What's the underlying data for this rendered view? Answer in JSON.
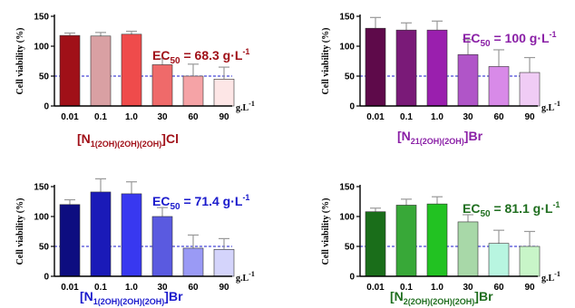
{
  "chart_data": [
    {
      "type": "bar",
      "title": "[N1(2OH)(2OH)(2OH)]Cl",
      "title_parts": [
        "[N",
        "1(2OH)(2OH)(2OH)",
        "]Cl"
      ],
      "annotation": {
        "ec_base": "EC",
        "ec_sub": "50",
        "ec_value": " = 68.3 g·L",
        "ec_sup": "-1"
      },
      "accent": "#a01018",
      "ylabel": "Cell viability (%)",
      "xunit_base": "g.L",
      "xunit_sup": "-1",
      "ylim": [
        0,
        150
      ],
      "yticks": [
        "0",
        "50",
        "100",
        "150"
      ],
      "reference_line": 50,
      "categories": [
        "0.01",
        "0.1",
        "1.0",
        "30",
        "60",
        "90"
      ],
      "values": [
        118,
        117,
        120,
        69,
        50,
        45
      ],
      "errors": [
        4,
        6,
        5,
        10,
        20,
        20
      ],
      "colors": [
        "#a01018",
        "#d9a0a3",
        "#ef4b4b",
        "#ef6a6a",
        "#f5a3a6",
        "#fde6e6"
      ]
    },
    {
      "type": "bar",
      "title": "[N21(2OH)(2OH)]Br",
      "title_parts": [
        "[N",
        "21(2OH)(2OH)",
        "]Br"
      ],
      "annotation": {
        "ec_base": "EC",
        "ec_sub": "50",
        "ec_value": " = 100 g·L",
        "ec_sup": "-1"
      },
      "accent": "#8a1fa6",
      "ylabel": "Cell viability (%)",
      "xunit_base": "g.L",
      "xunit_sup": "-1",
      "ylim": [
        0,
        150
      ],
      "yticks": [
        "0",
        "50",
        "100",
        "150"
      ],
      "reference_line": 50,
      "categories": [
        "0.01",
        "0.1",
        "1.0",
        "30",
        "60",
        "90"
      ],
      "values": [
        130,
        127,
        127,
        86,
        66,
        56
      ],
      "errors": [
        18,
        12,
        15,
        25,
        28,
        25
      ],
      "colors": [
        "#5e0a4a",
        "#7a1a78",
        "#9a1fae",
        "#b055c8",
        "#d88ae8",
        "#f0ccf5"
      ]
    },
    {
      "type": "bar",
      "title": "[N1(2OH)(2OH)(2OH)]Br",
      "title_parts": [
        "[N",
        "1(2OH)(2OH)(2OH)",
        "]Br"
      ],
      "annotation": {
        "ec_base": "EC",
        "ec_sub": "50",
        "ec_value": " = 71.4 g·L",
        "ec_sup": "-1"
      },
      "accent": "#1a1acc",
      "ylabel": "Cell viability (%)",
      "xunit_base": "g.L",
      "xunit_sup": "-1",
      "ylim": [
        0,
        150
      ],
      "yticks": [
        "0",
        "50",
        "100",
        "150"
      ],
      "reference_line": 50,
      "categories": [
        "0.01",
        "0.1",
        "1.0",
        "30",
        "60",
        "90"
      ],
      "values": [
        120,
        141,
        138,
        100,
        47,
        45
      ],
      "errors": [
        8,
        22,
        20,
        15,
        22,
        18
      ],
      "colors": [
        "#0d0d80",
        "#1a1ab8",
        "#3838f0",
        "#5a5ae0",
        "#9a9af5",
        "#d4d4fb"
      ]
    },
    {
      "type": "bar",
      "title": "[N2(2OH)(2OH)(2OH)]Br",
      "title_parts": [
        "[N",
        "2(2OH)(2OH)(2OH)",
        "]Br"
      ],
      "annotation": {
        "ec_base": "EC",
        "ec_sub": "50",
        "ec_value": " = 81.1 g·L",
        "ec_sup": "-1"
      },
      "accent": "#1f6e1f",
      "ylabel": "Cell viability (%)",
      "xunit_base": "g.L",
      "xunit_sup": "-1",
      "ylim": [
        0,
        150
      ],
      "yticks": [
        "0",
        "50",
        "100",
        "150"
      ],
      "reference_line": 50,
      "categories": [
        "0.01",
        "0.1",
        "1.0",
        "30",
        "60",
        "90"
      ],
      "values": [
        108,
        119,
        121,
        91,
        55,
        50
      ],
      "errors": [
        6,
        10,
        12,
        12,
        22,
        25
      ],
      "colors": [
        "#1a6e1a",
        "#38a838",
        "#22c222",
        "#a8d8a8",
        "#b8f5e0",
        "#c8f5c8"
      ]
    }
  ]
}
